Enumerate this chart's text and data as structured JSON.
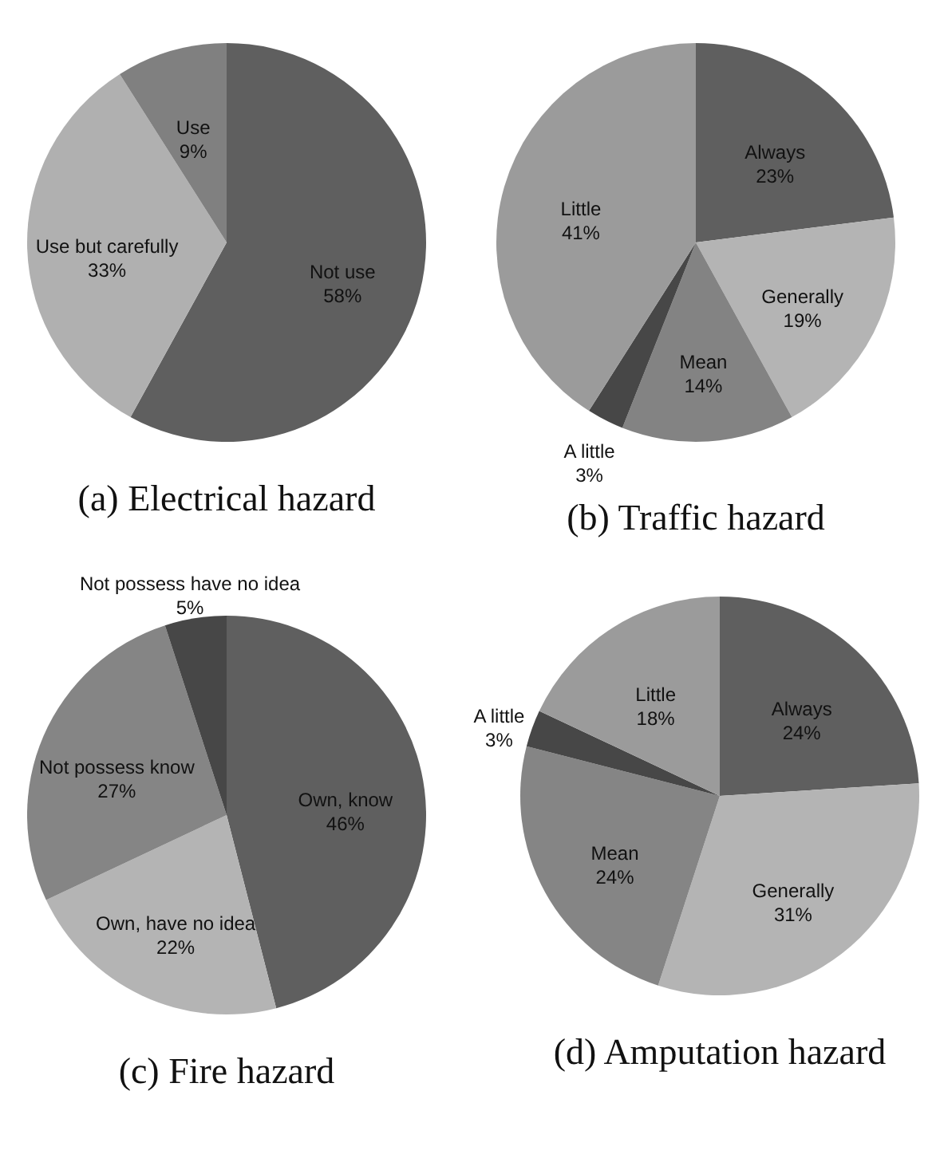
{
  "chart_data": [
    {
      "type": "pie",
      "title": "(a) Electrical hazard",
      "categories": [
        "Not use",
        "Use but carefully",
        "Use"
      ],
      "values": [
        58,
        33,
        9
      ],
      "colors": [
        "#5f5f5f",
        "#b0b0b0",
        "#808080"
      ],
      "value_labels": [
        "58%",
        "33%",
        "9%"
      ]
    },
    {
      "type": "pie",
      "title": "(b) Traffic hazard",
      "categories": [
        "Always",
        "Generally",
        "Mean",
        "A little",
        "Little"
      ],
      "values": [
        23,
        19,
        14,
        3,
        41
      ],
      "colors": [
        "#5f5f5f",
        "#b4b4b4",
        "#838383",
        "#474747",
        "#9b9b9b"
      ],
      "value_labels": [
        "23%",
        "19%",
        "14%",
        "3%",
        "41%"
      ]
    },
    {
      "type": "pie",
      "title": "(c) Fire hazard",
      "categories": [
        "Own, know",
        "Own, have no idea",
        "Not possess know",
        "Not possess have no idea"
      ],
      "values": [
        46,
        22,
        27,
        5
      ],
      "colors": [
        "#5f5f5f",
        "#b4b4b4",
        "#858585",
        "#474747"
      ],
      "value_labels": [
        "46%",
        "22%",
        "27%",
        "5%"
      ]
    },
    {
      "type": "pie",
      "title": "(d) Amputation hazard",
      "categories": [
        "Always",
        "Generally",
        "Mean",
        "A little",
        "Little"
      ],
      "values": [
        24,
        31,
        24,
        3,
        18
      ],
      "colors": [
        "#5f5f5f",
        "#b4b4b4",
        "#858585",
        "#474747",
        "#9b9b9b"
      ],
      "value_labels": [
        "24%",
        "31%",
        "24%",
        "3%",
        "18%"
      ]
    }
  ]
}
